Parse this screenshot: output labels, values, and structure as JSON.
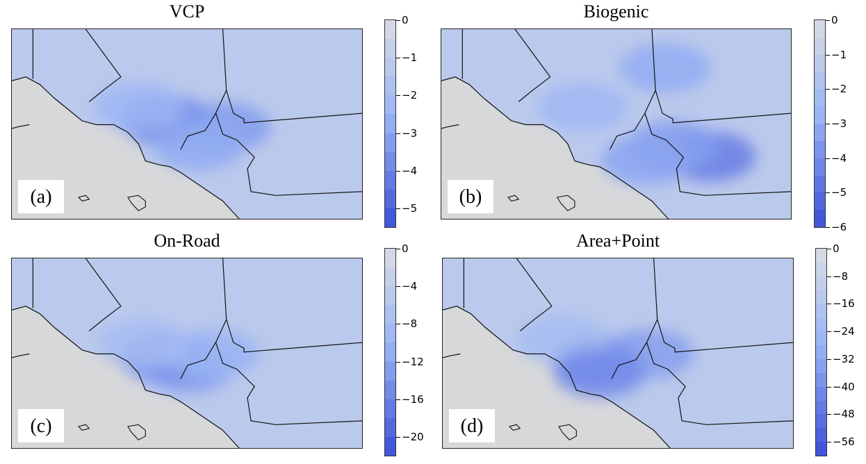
{
  "chart_data": [
    {
      "type": "heatmap",
      "panel_label": "(a)",
      "title": "VCP",
      "colorbar": {
        "min": -5.5,
        "max": 0,
        "ticks": [
          0,
          -1,
          -2,
          -3,
          -4,
          -5
        ],
        "tick_labels": [
          "0",
          "−1",
          "−2",
          "−3",
          "−4",
          "−5"
        ],
        "levels": 11
      },
      "hotspots": [
        {
          "lon": -118.25,
          "lat": 34.12,
          "value": -4.0
        },
        {
          "lon": -117.45,
          "lat": 34.02,
          "value": -3.2
        },
        {
          "lon": -117.8,
          "lat": 33.75,
          "value": -2.8
        },
        {
          "lon": -118.6,
          "lat": 34.3,
          "value": -2.4
        }
      ]
    },
    {
      "type": "heatmap",
      "panel_label": "(b)",
      "title": "Biogenic",
      "colorbar": {
        "min": -6,
        "max": 0,
        "ticks": [
          0,
          -1,
          -2,
          -3,
          -4,
          -5,
          -6
        ],
        "tick_labels": [
          "0",
          "−1",
          "−2",
          "−3",
          "−4",
          "−5",
          "−6"
        ],
        "levels": 12
      },
      "hotspots": [
        {
          "lon": -116.7,
          "lat": 33.6,
          "value": -4.5
        },
        {
          "lon": -117.2,
          "lat": 33.75,
          "value": -3.5
        },
        {
          "lon": -117.3,
          "lat": 34.85,
          "value": -3.0
        },
        {
          "lon": -117.55,
          "lat": 33.55,
          "value": -3.2
        },
        {
          "lon": -118.4,
          "lat": 34.3,
          "value": -2.5
        }
      ]
    },
    {
      "type": "heatmap",
      "panel_label": "(c)",
      "title": "On-Road",
      "colorbar": {
        "min": -22,
        "max": 0,
        "ticks": [
          0,
          -4,
          -8,
          -12,
          -16,
          -20
        ],
        "tick_labels": [
          "0",
          "−4",
          "−8",
          "−12",
          "−16",
          "−20"
        ],
        "levels": 11
      },
      "hotspots": [
        {
          "lon": -118.25,
          "lat": 34.0,
          "value": -16
        },
        {
          "lon": -117.95,
          "lat": 33.85,
          "value": -13
        },
        {
          "lon": -117.6,
          "lat": 34.05,
          "value": -10
        },
        {
          "lon": -118.55,
          "lat": 34.2,
          "value": -8
        }
      ]
    },
    {
      "type": "heatmap",
      "panel_label": "(d)",
      "title": "Area+Point",
      "colorbar": {
        "min": -60,
        "max": 0,
        "ticks": [
          0,
          -8,
          -16,
          -24,
          -32,
          -40,
          -48,
          -56
        ],
        "tick_labels": [
          "0",
          "−8",
          "−16",
          "−24",
          "−32",
          "−40",
          "−48",
          "−56"
        ],
        "levels": 15
      },
      "hotspots": [
        {
          "lon": -118.25,
          "lat": 33.95,
          "value": -44
        },
        {
          "lon": -117.55,
          "lat": 34.05,
          "value": -34
        },
        {
          "lon": -118.7,
          "lat": 34.25,
          "value": -22
        },
        {
          "lon": -118.2,
          "lat": 33.78,
          "value": -40
        }
      ]
    }
  ],
  "colors": {
    "background": "#d7d8da",
    "scale_light": "#d9dce3",
    "scale_mid": "#9bb6f5",
    "scale_dark": "#3b4fd8",
    "boundary": "#111111"
  }
}
